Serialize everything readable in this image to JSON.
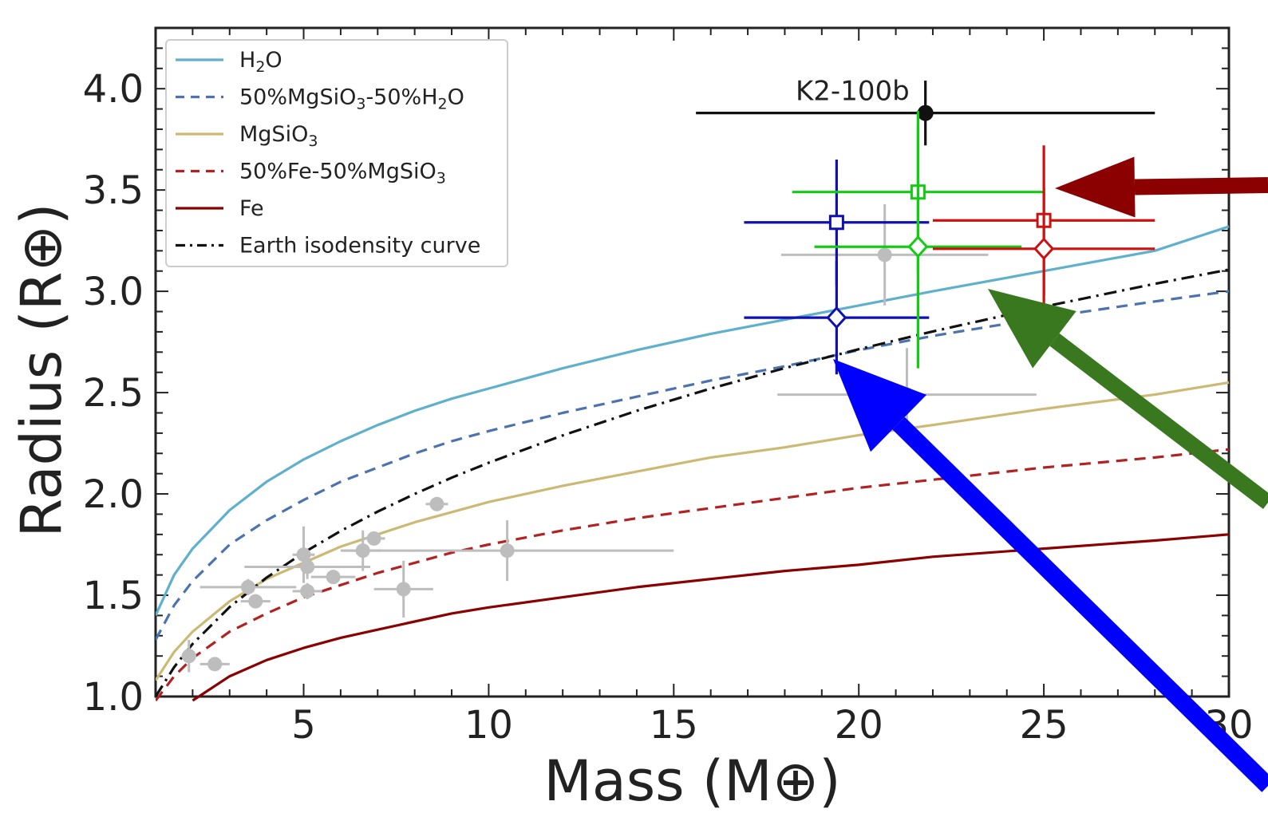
{
  "chart_data": {
    "type": "scatter",
    "title": "",
    "xlabel": "Mass (M⊕)",
    "ylabel": "Radius (R⊕)",
    "xlim": [
      1,
      30
    ],
    "ylim": [
      1.0,
      4.3
    ],
    "x_ticks": [
      "5",
      "10",
      "15",
      "20",
      "25",
      "30"
    ],
    "y_ticks": [
      "1.0",
      "1.5",
      "2.0",
      "2.5",
      "3.0",
      "3.5",
      "4.0"
    ],
    "legend_position": "top-left",
    "series": [
      {
        "name": "H2O",
        "color": "#5fb0cc",
        "style": "solid",
        "x": [
          1,
          1.5,
          2,
          3,
          4,
          5,
          6,
          7,
          8,
          9,
          10,
          12,
          14,
          16,
          18,
          20,
          22,
          25,
          28,
          30
        ],
        "y": [
          1.4,
          1.6,
          1.73,
          1.92,
          2.06,
          2.17,
          2.26,
          2.34,
          2.41,
          2.47,
          2.52,
          2.62,
          2.71,
          2.79,
          2.86,
          2.93,
          3.0,
          3.1,
          3.2,
          3.32
        ]
      },
      {
        "name": "50%MgSiO3-50%H2O",
        "color": "#4c72b0",
        "style": "dashed",
        "x": [
          1,
          1.5,
          2,
          3,
          4,
          5,
          6,
          7,
          8,
          9,
          10,
          12,
          14,
          16,
          18,
          20,
          22,
          25,
          28,
          30
        ],
        "y": [
          1.28,
          1.45,
          1.57,
          1.75,
          1.87,
          1.97,
          2.06,
          2.13,
          2.2,
          2.26,
          2.31,
          2.4,
          2.48,
          2.56,
          2.63,
          2.71,
          2.78,
          2.87,
          2.95,
          3.0
        ]
      },
      {
        "name": "MgSiO3",
        "color": "#ccb974",
        "style": "solid",
        "x": [
          1,
          1.5,
          2,
          3,
          4,
          5,
          6,
          7,
          8,
          9,
          10,
          12,
          14,
          16,
          18,
          20,
          22,
          25,
          28,
          30
        ],
        "y": [
          1.08,
          1.22,
          1.32,
          1.47,
          1.58,
          1.66,
          1.74,
          1.8,
          1.86,
          1.91,
          1.96,
          2.04,
          2.11,
          2.18,
          2.23,
          2.29,
          2.34,
          2.42,
          2.49,
          2.55
        ]
      },
      {
        "name": "50%Fe-50%MgSiO3",
        "color": "#b22222",
        "style": "dashed",
        "x": [
          1,
          1.5,
          2,
          3,
          4,
          5,
          6,
          7,
          8,
          9,
          10,
          12,
          14,
          16,
          18,
          20,
          22,
          25,
          28,
          30
        ],
        "y": [
          0.98,
          1.1,
          1.19,
          1.32,
          1.41,
          1.49,
          1.55,
          1.61,
          1.66,
          1.71,
          1.75,
          1.82,
          1.88,
          1.93,
          1.98,
          2.03,
          2.07,
          2.13,
          2.18,
          2.22
        ]
      },
      {
        "name": "Fe",
        "color": "#8b0000",
        "style": "solid",
        "x": [
          2,
          3,
          4,
          5,
          6,
          7,
          8,
          9,
          10,
          12,
          14,
          16,
          18,
          20,
          22,
          25,
          28,
          30
        ],
        "y": [
          0.98,
          1.1,
          1.18,
          1.24,
          1.29,
          1.33,
          1.37,
          1.41,
          1.44,
          1.49,
          1.54,
          1.58,
          1.62,
          1.65,
          1.69,
          1.73,
          1.77,
          1.8
        ]
      },
      {
        "name": "Earth isodensity curve",
        "color": "#111111",
        "style": "dashdot",
        "x": [
          1,
          1.5,
          2,
          3,
          4,
          5,
          6,
          7,
          8,
          9,
          10,
          12,
          14,
          16,
          18,
          20,
          22,
          25,
          28,
          30
        ],
        "y": [
          1.0,
          1.145,
          1.26,
          1.442,
          1.587,
          1.71,
          1.817,
          1.913,
          2.0,
          2.08,
          2.154,
          2.289,
          2.41,
          2.52,
          2.621,
          2.714,
          2.802,
          2.924,
          3.037,
          3.107
        ]
      }
    ],
    "gray_points": [
      {
        "x": 1.9,
        "y": 1.2,
        "xerr": 0.2,
        "yerr": 0.08
      },
      {
        "x": 2.6,
        "y": 1.16,
        "xerr": 0.4,
        "yerr": 0.03
      },
      {
        "x": 3.5,
        "y": 1.54,
        "xerr": 1.3,
        "yerr": 0.04
      },
      {
        "x": 3.7,
        "y": 1.47,
        "xerr": 0.4,
        "yerr": 0.03
      },
      {
        "x": 5.0,
        "y": 1.7,
        "xerr": 0.3,
        "yerr": 0.14
      },
      {
        "x": 5.1,
        "y": 1.64,
        "xerr": 1.7,
        "yerr": 0.06
      },
      {
        "x": 5.1,
        "y": 1.52,
        "xerr": 0.4,
        "yerr": 0.04
      },
      {
        "x": 5.8,
        "y": 1.59,
        "xerr": 0.6,
        "yerr": 0.03
      },
      {
        "x": 6.6,
        "y": 1.72,
        "xerr": 0.5,
        "yerr": 0.1
      },
      {
        "x": 6.9,
        "y": 1.78,
        "xerr": 0.3,
        "yerr": 0.03
      },
      {
        "x": 7.7,
        "y": 1.53,
        "xerr": 0.8,
        "yerr": 0.14
      },
      {
        "x": 8.6,
        "y": 1.95,
        "xerr": 0.3,
        "yerr": 0.03
      },
      {
        "x": 10.5,
        "y": 1.72,
        "xerr": 4.5,
        "yerr": 0.15
      },
      {
        "x": 20.7,
        "y": 3.18,
        "xerr": 2.8,
        "yerr": 0.25
      },
      {
        "x": 21.3,
        "y": 2.49,
        "xerr": 3.5,
        "yerr": 0.23
      }
    ],
    "highlighted_points": [
      {
        "label": "K2-100b",
        "color": "#111111",
        "marker": "circle",
        "x": 21.8,
        "y": 3.88,
        "xerr_minus": 6.2,
        "xerr_plus": 6.2,
        "yerr": 0.16
      },
      {
        "color": "#1010b0",
        "marker": "square",
        "x": 19.4,
        "y": 3.34,
        "xerr": 2.5,
        "yerr": 0.31
      },
      {
        "color": "#1010b0",
        "marker": "diamond",
        "x": 19.4,
        "y": 2.87,
        "xerr": 2.5,
        "yerr": 0.28
      },
      {
        "color": "#11cc11",
        "marker": "square",
        "x": 21.6,
        "y": 3.49,
        "xerr": 3.4,
        "yerr": 0.4
      },
      {
        "color": "#11cc11",
        "marker": "diamond",
        "x": 21.6,
        "y": 3.22,
        "xerr": 2.8,
        "yerr": 0.6
      },
      {
        "color": "#cc1111",
        "marker": "square",
        "x": 25.0,
        "y": 3.35,
        "xerr": 3.0,
        "yerr": 0.37
      },
      {
        "color": "#cc1111",
        "marker": "diamond",
        "x": 25.0,
        "y": 3.21,
        "xerr": 3.0,
        "yerr": 0.3
      }
    ],
    "arrows": [
      {
        "color": "#8b0000",
        "points_to": "red square point"
      },
      {
        "color": "#3a7820",
        "points_to": "green diamond point"
      },
      {
        "color": "#0000ff",
        "points_to": "blue diamond point"
      }
    ]
  },
  "legend": [
    {
      "key": "h2o",
      "parts": [
        {
          "t": "H"
        },
        {
          "t": "2",
          "sub": true
        },
        {
          "t": "O"
        }
      ]
    },
    {
      "key": "mix-rock-water",
      "parts": [
        {
          "t": "50%MgSiO"
        },
        {
          "t": "3",
          "sub": true
        },
        {
          "t": "-50%H"
        },
        {
          "t": "2",
          "sub": true
        },
        {
          "t": "O"
        }
      ]
    },
    {
      "key": "mgsio3",
      "parts": [
        {
          "t": "MgSiO"
        },
        {
          "t": "3",
          "sub": true
        }
      ]
    },
    {
      "key": "mix-fe-rock",
      "parts": [
        {
          "t": "50%Fe-50%MgSiO"
        },
        {
          "t": "3",
          "sub": true
        }
      ]
    },
    {
      "key": "fe",
      "parts": [
        {
          "t": "Fe"
        }
      ]
    },
    {
      "key": "earth-isodensity",
      "parts": [
        {
          "t": "Earth isodensity curve"
        }
      ]
    }
  ]
}
